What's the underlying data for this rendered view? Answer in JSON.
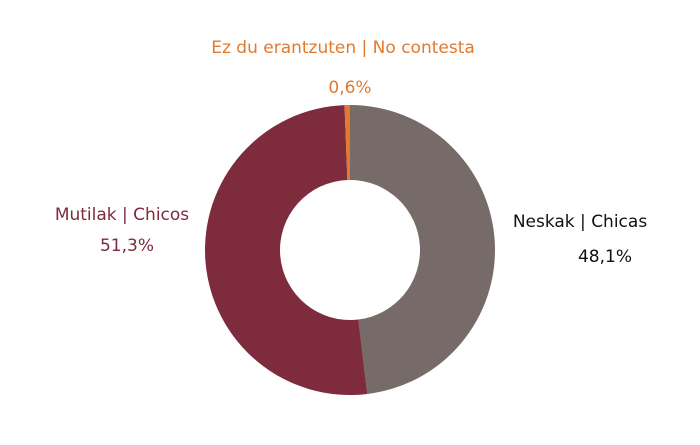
{
  "chart_data": {
    "type": "donut",
    "categories": [
      "Neskak | Chicas",
      "Mutilak | Chicos",
      "Ez du erantzuten | No contesta"
    ],
    "values": [
      48.1,
      51.3,
      0.6
    ],
    "value_labels": [
      "48,1%",
      "51,3%",
      "0,6%"
    ],
    "colors": [
      "#766b69",
      "#7d2b3d",
      "#e07a2e"
    ],
    "label_colors": [
      "#111111",
      "#7d2b3d",
      "#e07a2e"
    ]
  }
}
